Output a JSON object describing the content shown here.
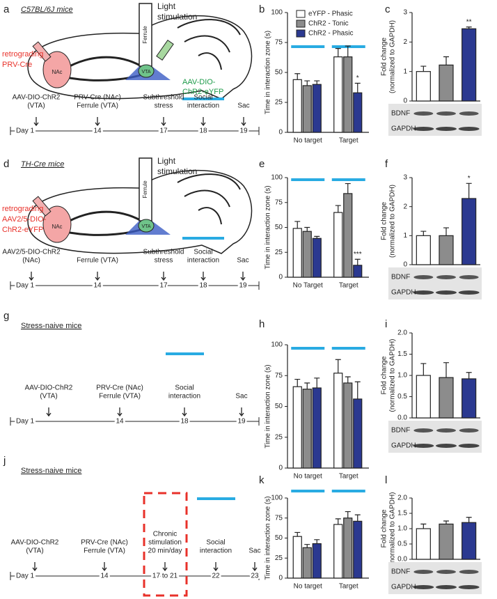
{
  "panels": [
    {
      "letter": "a",
      "title": "C57BL/6J mice",
      "scene": {
        "light": [
          "Light",
          "stimulation"
        ],
        "ferrule": "Ferrule",
        "virus": [
          "retrograding",
          "PRV-Cre"
        ],
        "nac": "NAc",
        "vta": "VTA",
        "vta_virus": [
          "AAV-DIO-",
          "ChR2-eYFP"
        ]
      },
      "timeline": {
        "events": [
          [
            "AAV-DIO-ChR2",
            "(VTA)"
          ],
          [
            "PRV-Cre (NAc)",
            "Ferrule (VTA)"
          ],
          [
            "Subthreshold",
            "stress"
          ],
          [
            "Social",
            "interaction"
          ],
          [
            "Sac"
          ]
        ],
        "days": [
          "Day 1",
          "14",
          "17",
          "18",
          "19"
        ]
      }
    },
    {
      "letter": "d",
      "title": "TH-Cre mice",
      "scene": {
        "light": [
          "Light",
          "stimulation"
        ],
        "ferrule": "Ferrule",
        "virus": [
          "retrograding",
          "AAV2/5-DIO-",
          "ChR2-eYFP"
        ],
        "nac": "NAc",
        "vta": "VTA"
      },
      "timeline": {
        "events": [
          [
            "AAV2/5-DIO-ChR2",
            "(NAc)"
          ],
          [
            "Ferrule (VTA)"
          ],
          [
            "Subthreshold",
            "stress"
          ],
          [
            "Social",
            "interaction"
          ],
          [
            "Sac"
          ]
        ],
        "days": [
          "Day 1",
          "14",
          "17",
          "18",
          "19"
        ]
      }
    },
    {
      "letter": "g",
      "title": "Stress-naive mice",
      "timeline": {
        "events": [
          [
            "AAV-DIO-ChR2",
            "(VTA)"
          ],
          [
            "PRV-Cre (NAc)",
            "Ferrule (VTA)"
          ],
          [
            "Social",
            "interaction"
          ],
          [
            "Sac"
          ]
        ],
        "days": [
          "Day 1",
          "14",
          "18",
          "19"
        ]
      }
    },
    {
      "letter": "j",
      "title": "Stress-naive mice",
      "timeline": {
        "events": [
          [
            "AAV-DIO-ChR2",
            "(VTA)"
          ],
          [
            "PRV-Cre (NAc)",
            "Ferrule (VTA)"
          ],
          [
            "Chronic",
            "stimulation",
            "20 min/day"
          ],
          [
            "Social",
            "interaction"
          ],
          [
            "Sac"
          ]
        ],
        "days": [
          "Day 1",
          "14",
          "17 to 21",
          "22",
          "23"
        ]
      }
    }
  ],
  "chart_data": [
    {
      "type": "grouped-bar",
      "letter": "b",
      "ylabel": [
        "Time in interaction zone (s)"
      ],
      "categories": [
        "No target",
        "Target"
      ],
      "series": [
        {
          "name": "eYFP - Phasic",
          "color": "#ffffff",
          "values": [
            44,
            63
          ],
          "errors": [
            5,
            7
          ]
        },
        {
          "name": "ChR2 - Tonic",
          "color": "#8c8c8c",
          "values": [
            39,
            63
          ],
          "errors": [
            4,
            9
          ]
        },
        {
          "name": "ChR2 - Phasic",
          "color": "#2b3990",
          "values": [
            40,
            33
          ],
          "errors": [
            3,
            8
          ]
        }
      ],
      "ylim": [
        0,
        100
      ],
      "yticks": [
        0,
        25,
        50,
        75,
        100
      ],
      "annotation": "*",
      "legend": "upper right"
    },
    {
      "type": "bar",
      "letter": "c",
      "ylabel": [
        "Fold change",
        "(normalized to GAPDH)"
      ],
      "categories": [
        null,
        null,
        null
      ],
      "values": [
        1.0,
        1.22,
        2.45
      ],
      "errors": [
        0.18,
        0.28,
        0.06
      ],
      "colors": [
        "#ffffff",
        "#8c8c8c",
        "#2b3990"
      ],
      "ylim": [
        0,
        3
      ],
      "yticks": [
        0,
        1,
        2,
        3
      ],
      "annotation": "**",
      "blot_labels": [
        "BDNF",
        "GAPDH"
      ]
    },
    {
      "type": "grouped-bar",
      "letter": "e",
      "ylabel": [
        "Time in interaction zone (s)"
      ],
      "categories": [
        "No Target",
        "Target"
      ],
      "series": [
        {
          "color": "#ffffff",
          "values": [
            49,
            65
          ],
          "errors": [
            7,
            7
          ]
        },
        {
          "color": "#8c8c8c",
          "values": [
            46,
            84
          ],
          "errors": [
            4,
            10
          ]
        },
        {
          "color": "#2b3990",
          "values": [
            39,
            12
          ],
          "errors": [
            2,
            6
          ]
        }
      ],
      "ylim": [
        0,
        100
      ],
      "yticks": [
        0,
        25,
        50,
        75,
        100
      ],
      "annotation": "***"
    },
    {
      "type": "bar",
      "letter": "f",
      "ylabel": [
        "Fold change",
        "(normalized to GAPDH)"
      ],
      "categories": [
        null,
        null,
        null
      ],
      "values": [
        1.0,
        1.0,
        2.28
      ],
      "errors": [
        0.15,
        0.27,
        0.52
      ],
      "colors": [
        "#ffffff",
        "#8c8c8c",
        "#2b3990"
      ],
      "ylim": [
        0,
        3
      ],
      "yticks": [
        0,
        1,
        2,
        3
      ],
      "annotation": "*",
      "blot_labels": [
        "BDNF",
        "GAPDH"
      ]
    },
    {
      "type": "grouped-bar",
      "letter": "h",
      "ylabel": [
        "Time in interaction zone (s)"
      ],
      "categories": [
        "No target",
        "Target"
      ],
      "series": [
        {
          "color": "#ffffff",
          "values": [
            66,
            77
          ],
          "errors": [
            6,
            11
          ]
        },
        {
          "color": "#8c8c8c",
          "values": [
            64,
            69
          ],
          "errors": [
            5,
            5
          ]
        },
        {
          "color": "#2b3990",
          "values": [
            65,
            56
          ],
          "errors": [
            8,
            14
          ]
        }
      ],
      "ylim": [
        0,
        100
      ],
      "yticks": [
        0,
        25,
        50,
        75,
        100
      ]
    },
    {
      "type": "bar",
      "letter": "i",
      "ylabel": [
        "Fold change",
        "(normalized to GAPDH)"
      ],
      "categories": [
        null,
        null,
        null
      ],
      "values": [
        1.0,
        0.95,
        0.92
      ],
      "errors": [
        0.28,
        0.35,
        0.15
      ],
      "colors": [
        "#ffffff",
        "#8c8c8c",
        "#2b3990"
      ],
      "ylim": [
        0,
        2
      ],
      "yticks": [
        {
          "value": 0,
          "label": "0.0"
        },
        0.5,
        {
          "value": 1,
          "label": "1.0"
        },
        1.5,
        {
          "value": 2,
          "label": "2.0"
        }
      ],
      "blot_labels": [
        "BDNF",
        "GAPDH"
      ]
    },
    {
      "type": "grouped-bar",
      "letter": "k",
      "ylabel": [
        "Time in interaction zone (s)"
      ],
      "categories": [
        "No target",
        "Target"
      ],
      "series": [
        {
          "color": "#ffffff",
          "values": [
            52,
            67
          ],
          "errors": [
            5,
            7
          ]
        },
        {
          "color": "#8c8c8c",
          "values": [
            38,
            75
          ],
          "errors": [
            4,
            8
          ]
        },
        {
          "color": "#2b3990",
          "values": [
            43,
            71
          ],
          "errors": [
            5,
            8
          ]
        }
      ],
      "ylim": [
        0,
        100
      ],
      "yticks": [
        0,
        25,
        50,
        75,
        100
      ]
    },
    {
      "type": "bar",
      "letter": "l",
      "ylabel": [
        "Fold change",
        "(normalized to GAPDH)"
      ],
      "categories": [
        null,
        null,
        null
      ],
      "values": [
        1.0,
        1.15,
        1.2
      ],
      "errors": [
        0.15,
        0.1,
        0.17
      ],
      "colors": [
        "#ffffff",
        "#8c8c8c",
        "#2b3990"
      ],
      "ylim": [
        0,
        2
      ],
      "yticks": [
        {
          "value": 0,
          "label": "0.0"
        },
        0.5,
        {
          "value": 1,
          "label": "1.0"
        },
        1.5,
        {
          "value": 2,
          "label": "2.0"
        }
      ],
      "blot_labels": [
        "BDNF",
        "GAPDH"
      ]
    }
  ]
}
